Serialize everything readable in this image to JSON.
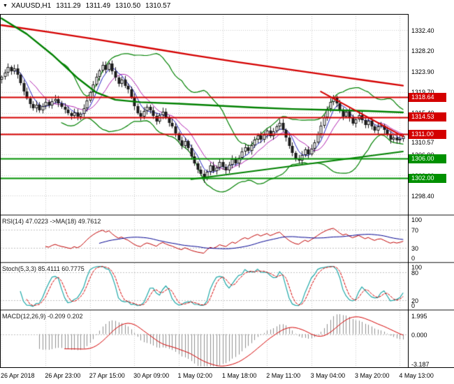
{
  "header": {
    "dropdown_icon": "▼",
    "symbol_period": "XAUUSD,H1",
    "open": "1311.29",
    "high": "1311.49",
    "low": "1310.50",
    "close": "1310.57"
  },
  "colors": {
    "background": "#ffffff",
    "grid": "#c8c8c8",
    "candle_up_fill": "#ffffff",
    "candle_down_fill": "#1a1a1a",
    "candle_border": "#1a1a1a",
    "axis_text": "#000000",
    "badge_text": "#ffffff",
    "resistance": "#d40000",
    "support": "#009000"
  },
  "chart_data": {
    "type": "candlestick",
    "symbol": "XAUUSD",
    "timeframe": "H1",
    "x_axis": {
      "labels": [
        "26 Apr 2018",
        "26 Apr 23:00",
        "27 Apr 15:00",
        "30 Apr 09:00",
        "1 May 02:00",
        "1 May 18:00",
        "2 May 11:00",
        "3 May 04:00",
        "3 May 20:00",
        "4 May 13:00"
      ],
      "label_indices": [
        0,
        14,
        28,
        42,
        56,
        70,
        84,
        98,
        112,
        126
      ]
    },
    "y_axis": {
      "range": [
        1335.7,
        1294.6
      ],
      "ticks": [
        "1332.40",
        "1328.20",
        "1323.90",
        "1319.70",
        "1315.40",
        "1311.20",
        "1306.90",
        "1302.60",
        "1298.40"
      ],
      "tick_values": [
        1332.4,
        1328.2,
        1323.9,
        1319.7,
        1315.4,
        1311.2,
        1306.9,
        1302.6,
        1298.4
      ]
    },
    "closes": [
      1322.8,
      1323.6,
      1324.8,
      1323.9,
      1324.6,
      1323.2,
      1321.5,
      1319.8,
      1318.4,
      1317.2,
      1316.3,
      1317.1,
      1316.0,
      1316.8,
      1317.6,
      1317.0,
      1317.8,
      1318.3,
      1317.4,
      1316.6,
      1316.1,
      1315.3,
      1314.8,
      1315.5,
      1314.6,
      1315.2,
      1316.4,
      1318.0,
      1319.6,
      1321.2,
      1322.8,
      1324.1,
      1325.2,
      1324.3,
      1325.5,
      1324.0,
      1322.6,
      1321.4,
      1322.2,
      1321.0,
      1320.2,
      1318.6,
      1316.8,
      1315.4,
      1314.6,
      1315.8,
      1316.6,
      1315.9,
      1314.8,
      1313.7,
      1314.9,
      1315.7,
      1314.5,
      1313.4,
      1312.6,
      1311.2,
      1309.8,
      1308.7,
      1309.6,
      1308.2,
      1306.5,
      1305.1,
      1303.8,
      1302.9,
      1301.9,
      1303.4,
      1304.6,
      1303.5,
      1304.2,
      1305.3,
      1304.4,
      1303.6,
      1304.8,
      1305.9,
      1305.0,
      1306.2,
      1307.5,
      1308.4,
      1307.6,
      1308.8,
      1309.9,
      1310.8,
      1309.9,
      1310.9,
      1311.8,
      1310.7,
      1311.6,
      1312.7,
      1313.4,
      1311.9,
      1310.3,
      1308.6,
      1307.2,
      1306.1,
      1305.6,
      1306.8,
      1307.9,
      1306.9,
      1308.1,
      1309.4,
      1311.0,
      1312.8,
      1314.5,
      1316.2,
      1317.6,
      1318.5,
      1317.3,
      1315.9,
      1314.7,
      1315.6,
      1314.4,
      1313.2,
      1314.1,
      1315.0,
      1314.0,
      1312.9,
      1313.8,
      1312.7,
      1311.8,
      1312.6,
      1312.8,
      1311.9,
      1310.9,
      1309.9,
      1310.4,
      1309.8,
      1310.1,
      1310.6
    ],
    "horizontal_levels": [
      {
        "label": "1318.64",
        "value": 1318.64,
        "role": "resistance",
        "color": "#d40000"
      },
      {
        "label": "1314.53",
        "value": 1314.53,
        "role": "resistance",
        "color": "#d40000"
      },
      {
        "label": "1311.00",
        "value": 1311.0,
        "role": "resistance",
        "color": "#d40000"
      },
      {
        "label": "1306.00",
        "value": 1306.0,
        "role": "support",
        "color": "#009000"
      },
      {
        "label": "1302.00",
        "value": 1302.0,
        "role": "support",
        "color": "#009000"
      }
    ],
    "current_price": {
      "label": "1310.57",
      "value": 1310.57
    },
    "moving_averages": [
      {
        "name": "long-ma-red",
        "color": "#d40000",
        "width": 2.4,
        "points": [
          [
            0,
            1333.4
          ],
          [
            15,
            1332.0
          ],
          [
            30,
            1330.5
          ],
          [
            45,
            1328.9
          ],
          [
            60,
            1327.3
          ],
          [
            75,
            1325.8
          ],
          [
            90,
            1324.4
          ],
          [
            105,
            1323.0
          ],
          [
            115,
            1322.1
          ],
          [
            127,
            1321.0
          ]
        ]
      },
      {
        "name": "slow-ma-green",
        "color": "#008000",
        "width": 2.4,
        "points": [
          [
            0,
            1334.8
          ],
          [
            8,
            1331.6
          ],
          [
            16,
            1327.4
          ],
          [
            24,
            1322.6
          ],
          [
            30,
            1319.6
          ],
          [
            36,
            1318.1
          ],
          [
            44,
            1317.6
          ],
          [
            56,
            1317.3
          ],
          [
            68,
            1316.9
          ],
          [
            80,
            1316.5
          ],
          [
            92,
            1316.2
          ],
          [
            104,
            1316.0
          ],
          [
            116,
            1315.8
          ],
          [
            127,
            1315.5
          ]
        ]
      }
    ],
    "computed_overlays": [
      {
        "name": "bollinger-bands",
        "period": 20,
        "deviation": 2,
        "color": "#008000",
        "width": 1.2
      },
      {
        "name": "fast-sma",
        "period": 5,
        "color": "#2020c0",
        "width": 1
      },
      {
        "name": "mid-sma",
        "period": 10,
        "color": "#b020b0",
        "width": 1
      }
    ],
    "trendlines": [
      {
        "name": "ascending-support-trendline",
        "color": "#008000",
        "width": 2,
        "points": [
          [
            60,
            1301.8
          ],
          [
            127,
            1307.5
          ]
        ]
      },
      {
        "name": "descending-resistance-trendline",
        "color": "#d40000",
        "width": 2,
        "points": [
          [
            101,
            1319.8
          ],
          [
            127,
            1310.6
          ]
        ]
      }
    ],
    "indicators": {
      "rsi": {
        "label": "RSI(14) 47.0223 ->MA(18) 49.7612",
        "period": 14,
        "ma_period": 18,
        "range": [
          100,
          0
        ],
        "levels": [
          70,
          30
        ],
        "ticks": [
          "100",
          "70",
          "30",
          "0"
        ],
        "tick_values": [
          100,
          70,
          30,
          0
        ],
        "line_color": "#c00000",
        "ma_color": "#000090"
      },
      "stochastic": {
        "label": "Stoch(5,3,3) 85.4111 60.7775",
        "k_period": 5,
        "d_period": 3,
        "slowing": 3,
        "range": [
          100,
          0
        ],
        "levels": [
          80,
          20
        ],
        "ticks": [
          "100",
          "80",
          "20",
          "0"
        ],
        "tick_values": [
          100,
          80,
          20,
          0
        ],
        "k_color": "#20a8a8",
        "d_color": "#d40000"
      },
      "macd": {
        "label": "MACD(12,26,9) -0.209 0.202",
        "fast": 12,
        "slow": 26,
        "signal": 9,
        "range": [
          2.5,
          -3.6
        ],
        "ticks": [
          "1.995",
          "0.000",
          "-3.187"
        ],
        "tick_values": [
          1.995,
          0,
          -3.187
        ],
        "hist_color": "#909090",
        "signal_color": "#d40000"
      }
    }
  }
}
